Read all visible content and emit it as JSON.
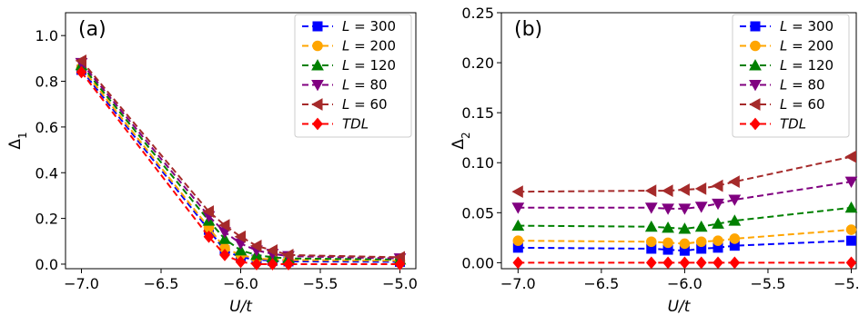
{
  "chart_data": [
    {
      "type": "line",
      "panel_label": "(a)",
      "xlabel": "U/t",
      "ylabel": "Δ",
      "ylabel_sub": "1",
      "xlim": [
        -7.1,
        -4.9
      ],
      "ylim": [
        -0.02,
        1.1
      ],
      "xticks": [
        -7.0,
        -6.5,
        -6.0,
        -5.5,
        -5.0
      ],
      "xtick_labels": [
        "−7.0",
        "−6.5",
        "−6.0",
        "−5.5",
        "−5.0"
      ],
      "yticks": [
        0.0,
        0.2,
        0.4,
        0.6,
        0.8,
        1.0
      ],
      "ytick_labels": [
        "0.0",
        "0.2",
        "0.4",
        "0.6",
        "0.8",
        "1.0"
      ],
      "legend_position": "top-right",
      "series": [
        {
          "name": "L = 300",
          "label_var": "L",
          "label_rest": " = 300",
          "color": "#0000ff",
          "marker": "square",
          "x": [
            -7.0,
            -6.2,
            -6.1,
            -6.0,
            -5.9,
            -5.8,
            -5.7,
            -5.0
          ],
          "y": [
            0.85,
            0.15,
            0.06,
            0.03,
            0.02,
            0.015,
            0.012,
            0.01
          ]
        },
        {
          "name": "L = 200",
          "label_var": "L",
          "label_rest": " = 200",
          "color": "#ffa500",
          "marker": "circle",
          "x": [
            -7.0,
            -6.2,
            -6.1,
            -6.0,
            -5.9,
            -5.8,
            -5.7,
            -5.0
          ],
          "y": [
            0.86,
            0.16,
            0.07,
            0.04,
            0.025,
            0.02,
            0.018,
            0.015
          ]
        },
        {
          "name": "L = 120",
          "label_var": "L",
          "label_rest": " = 120",
          "color": "#008000",
          "marker": "triangle-up",
          "x": [
            -7.0,
            -6.2,
            -6.1,
            -6.0,
            -5.9,
            -5.8,
            -5.7,
            -5.0
          ],
          "y": [
            0.87,
            0.19,
            0.11,
            0.06,
            0.04,
            0.03,
            0.025,
            0.02
          ]
        },
        {
          "name": "L = 80",
          "label_var": "L",
          "label_rest": " = 80",
          "color": "#800080",
          "marker": "triangle-down",
          "x": [
            -7.0,
            -6.2,
            -6.1,
            -6.0,
            -5.9,
            -5.8,
            -5.7,
            -5.0
          ],
          "y": [
            0.88,
            0.21,
            0.14,
            0.09,
            0.06,
            0.045,
            0.035,
            0.025
          ]
        },
        {
          "name": "L = 60",
          "label_var": "L",
          "label_rest": " = 60",
          "color": "#a52a2a",
          "marker": "triangle-left",
          "x": [
            -7.0,
            -6.2,
            -6.1,
            -6.0,
            -5.9,
            -5.8,
            -5.7,
            -5.0
          ],
          "y": [
            0.89,
            0.23,
            0.17,
            0.12,
            0.08,
            0.06,
            0.04,
            0.03
          ]
        },
        {
          "name": "TDL",
          "label_var": "TDL",
          "label_rest": "",
          "color": "#ff0000",
          "marker": "diamond",
          "x": [
            -7.0,
            -6.2,
            -6.1,
            -6.0,
            -5.9,
            -5.8,
            -5.7,
            -5.0
          ],
          "y": [
            0.84,
            0.12,
            0.04,
            0.01,
            0.0,
            0.0,
            0.0,
            0.0
          ]
        }
      ]
    },
    {
      "type": "line",
      "panel_label": "(b)",
      "xlabel": "U/t",
      "ylabel": "Δ",
      "ylabel_sub": "2",
      "xlim": [
        -7.1,
        -4.97
      ],
      "ylim": [
        -0.006,
        0.25
      ],
      "xticks": [
        -7.0,
        -6.5,
        -6.0,
        -5.5,
        -5.0
      ],
      "xtick_labels": [
        "−7.0",
        "−6.5",
        "−6.0",
        "−5.5",
        "−5.0"
      ],
      "yticks": [
        0.0,
        0.05,
        0.1,
        0.15,
        0.2,
        0.25
      ],
      "ytick_labels": [
        "0.00",
        "0.05",
        "0.10",
        "0.15",
        "0.20",
        "0.25"
      ],
      "legend_position": "top-right",
      "series": [
        {
          "name": "L = 300",
          "label_var": "L",
          "label_rest": " = 300",
          "color": "#0000ff",
          "marker": "square",
          "x": [
            -7.0,
            -6.2,
            -6.1,
            -6.0,
            -5.9,
            -5.8,
            -5.7,
            -5.0
          ],
          "y": [
            0.015,
            0.014,
            0.013,
            0.012,
            0.014,
            0.015,
            0.017,
            0.022
          ]
        },
        {
          "name": "L = 200",
          "label_var": "L",
          "label_rest": " = 200",
          "color": "#ffa500",
          "marker": "circle",
          "x": [
            -7.0,
            -6.2,
            -6.1,
            -6.0,
            -5.9,
            -5.8,
            -5.7,
            -5.0
          ],
          "y": [
            0.022,
            0.021,
            0.02,
            0.019,
            0.021,
            0.022,
            0.024,
            0.033
          ]
        },
        {
          "name": "L = 120",
          "label_var": "L",
          "label_rest": " = 120",
          "color": "#008000",
          "marker": "triangle-up",
          "x": [
            -7.0,
            -6.2,
            -6.1,
            -6.0,
            -5.9,
            -5.8,
            -5.7,
            -5.0
          ],
          "y": [
            0.037,
            0.036,
            0.035,
            0.034,
            0.036,
            0.039,
            0.042,
            0.055
          ]
        },
        {
          "name": "L = 80",
          "label_var": "L",
          "label_rest": " = 80",
          "color": "#800080",
          "marker": "triangle-down",
          "x": [
            -7.0,
            -6.2,
            -6.1,
            -6.0,
            -5.9,
            -5.8,
            -5.7,
            -5.0
          ],
          "y": [
            0.055,
            0.055,
            0.054,
            0.054,
            0.056,
            0.059,
            0.063,
            0.081
          ]
        },
        {
          "name": "L = 60",
          "label_var": "L",
          "label_rest": " = 60",
          "color": "#a52a2a",
          "marker": "triangle-left",
          "x": [
            -7.0,
            -6.2,
            -6.1,
            -6.0,
            -5.9,
            -5.8,
            -5.7,
            -5.0
          ],
          "y": [
            0.071,
            0.072,
            0.072,
            0.073,
            0.074,
            0.077,
            0.081,
            0.106
          ]
        },
        {
          "name": "TDL",
          "label_var": "TDL",
          "label_rest": "",
          "color": "#ff0000",
          "marker": "diamond",
          "x": [
            -7.0,
            -6.2,
            -6.1,
            -6.0,
            -5.9,
            -5.8,
            -5.7,
            -5.0
          ],
          "y": [
            0.0,
            0.0,
            0.0,
            0.0,
            0.0,
            0.0,
            0.0,
            0.0
          ]
        }
      ]
    }
  ]
}
